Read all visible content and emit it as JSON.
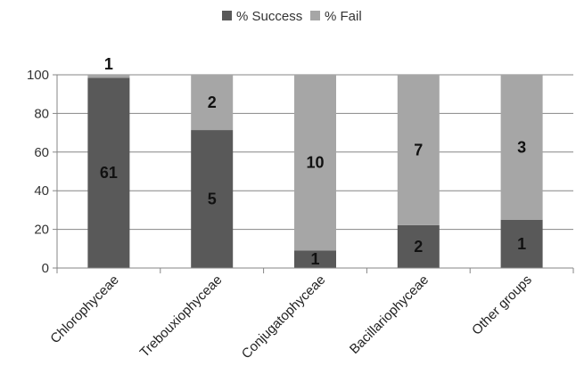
{
  "chart_data": {
    "type": "bar",
    "stacked": true,
    "title": "",
    "xlabel": "",
    "ylabel": "",
    "ylim": [
      0,
      100
    ],
    "yticks": [
      0,
      20,
      40,
      60,
      80,
      100
    ],
    "grid": true,
    "legend_position": "top",
    "categories": [
      "Chlorophyceae",
      "Trebouxiophyceae",
      "Conjugatophyceae",
      "Bacillariophyceae",
      "Other groups"
    ],
    "series": [
      {
        "name": "% Success",
        "color": "#595959",
        "values": [
          98.4,
          71.4,
          9.1,
          22.2,
          25.0
        ],
        "labels": [
          "61",
          "5",
          "1",
          "2",
          "1"
        ]
      },
      {
        "name": "% Fail",
        "color": "#a6a6a6",
        "values": [
          1.6,
          28.6,
          90.9,
          77.8,
          75.0
        ],
        "labels": [
          "1",
          "2",
          "10",
          "7",
          "3"
        ]
      }
    ]
  }
}
